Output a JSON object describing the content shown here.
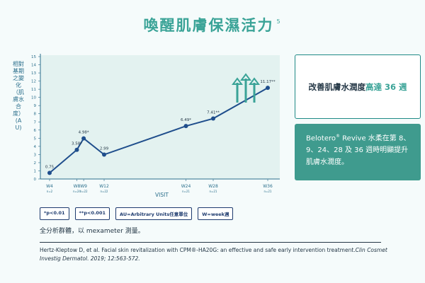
{
  "title": "喚醒肌膚保濕活力",
  "title_ref": "5",
  "chart_data": {
    "type": "line",
    "ylabel": "相對基期之變化（肌膚水合度）(AU)",
    "xlabel": "VISIT",
    "ylim": [
      0,
      15
    ],
    "yticks": [
      0,
      1,
      2,
      3,
      4,
      5,
      6,
      7,
      8,
      9,
      10,
      11,
      12,
      13,
      14,
      15
    ],
    "x": [
      4,
      8,
      9,
      12,
      24,
      28,
      36
    ],
    "xlim": [
      4,
      36
    ],
    "tick_labels": [
      "W4",
      "W8",
      "W9",
      "W12",
      "W24",
      "W28",
      "W36"
    ],
    "tick_sublabels": [
      "n=2",
      "n=24",
      "n=22",
      "n=22",
      "n=21",
      "n=21",
      "n=21"
    ],
    "values": [
      0.75,
      3.58,
      4.98,
      2.99,
      6.49,
      7.41,
      11.17
    ],
    "point_labels": [
      "0.75",
      "3.58*",
      "4.98*",
      "2.99",
      "6.49*",
      "7.41**",
      "11.17**"
    ],
    "line_color": "#1f4e8c",
    "fill_color": "#e3f2f0",
    "arrow_color": "#3aa397",
    "grid": false
  },
  "callout_top": {
    "text_prefix": "改善肌膚水潤度",
    "text_highlight": "高達 36 週"
  },
  "callout_bottom": {
    "brand": "Belotero",
    "reg": "®",
    "text": " Revive 水柔在第 8、9、24、28 及 36 週時明顯提升肌膚水潤度。"
  },
  "legend": [
    {
      "label": "*p<0.01"
    },
    {
      "label": "**p<0.001"
    },
    {
      "label": "AU=Arbitrary Units任意單位"
    },
    {
      "label": "W=week週"
    }
  ],
  "note": "全分析群體，以 mexameter 測量。",
  "reference": {
    "part1": "Hertz-Kleptow D, et al. Facial skin revitalization with CPM®-HA20G: an effective and safe early intervention treatment.",
    "journal": "Clin Cosmet Investig Dermatol.",
    "part2": " 2019; 12:563-572."
  }
}
